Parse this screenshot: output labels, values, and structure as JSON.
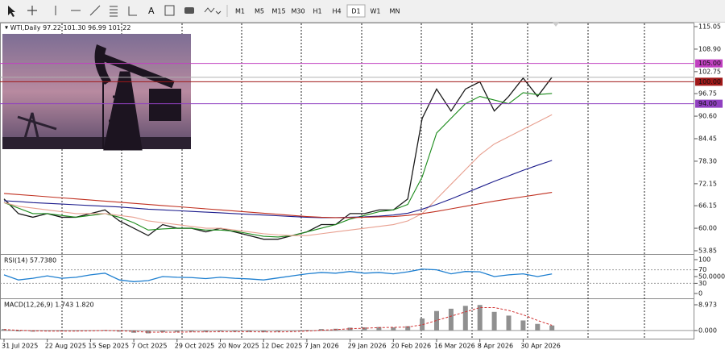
{
  "toolbar": {
    "timeframes": [
      "M1",
      "M5",
      "M15",
      "M30",
      "H1",
      "H4",
      "D1",
      "W1",
      "MN"
    ],
    "active": "D1"
  },
  "chart_data": [
    {
      "type": "line",
      "title": "WTI,Daily",
      "subtitle": "97.22 101.30 96.99 101.22",
      "categories": [
        "31 Jul 2025",
        null,
        null,
        "22 Aug 2025",
        null,
        null,
        "15 Sep 2025",
        null,
        null,
        "7 Oct 2025",
        null,
        null,
        "29 Oct 2025",
        null,
        null,
        "20 Nov 2025",
        null,
        null,
        "12 Dec 2025",
        null,
        null,
        "7 Jan 2026",
        null,
        null,
        "29 Jan 2026",
        null,
        null,
        "20 Feb 2026",
        null,
        null,
        "16 Mar 2026",
        null,
        null,
        "8 Apr 2026",
        null,
        null,
        "30 Apr 2026",
        null,
        null
      ],
      "series": [
        {
          "color": "#1a1a1a",
          "values": [
            68,
            64,
            63,
            64,
            63,
            63,
            64,
            65,
            62,
            60,
            58,
            61,
            60,
            60,
            59,
            60,
            59,
            58,
            57,
            57,
            58,
            59,
            61,
            61,
            64,
            64,
            65,
            65,
            68,
            90,
            98,
            92,
            98,
            100,
            92,
            96,
            101,
            96,
            101.22
          ]
        },
        {
          "color": "#1a8a1a",
          "values": [
            67,
            65.5,
            64,
            64,
            63.5,
            63,
            63.5,
            64,
            63,
            61.5,
            59.5,
            59.8,
            60,
            60,
            59.5,
            59.5,
            59.2,
            58.5,
            57.8,
            57.6,
            58,
            59,
            60,
            61,
            62.5,
            63.5,
            64.5,
            65,
            66.5,
            74,
            86,
            90,
            94,
            96,
            95,
            94,
            97,
            96.5,
            96.8
          ]
        },
        {
          "color": "#e8a090",
          "values": [
            67,
            66,
            65.5,
            65,
            64.5,
            64,
            64,
            64,
            63.5,
            63,
            62,
            61.5,
            61,
            60.5,
            60,
            60,
            59.5,
            59,
            58.5,
            58.2,
            58,
            58,
            58.5,
            59,
            59.5,
            60,
            60.5,
            61,
            62,
            64,
            68,
            72,
            76,
            80,
            83,
            85,
            87,
            89,
            91
          ]
        },
        {
          "color": "#1c1c8c",
          "values": [
            67.5,
            67.3,
            67,
            66.8,
            66.6,
            66.4,
            66.2,
            66,
            65.8,
            65.5,
            65.2,
            65,
            64.8,
            64.6,
            64.4,
            64.2,
            64,
            63.8,
            63.6,
            63.4,
            63.2,
            63,
            62.9,
            62.9,
            63,
            63.1,
            63.3,
            63.6,
            64.1,
            65.2,
            66.5,
            68,
            69.6,
            71.2,
            72.8,
            74.3,
            75.8,
            77.2,
            78.5
          ]
        },
        {
          "color": "#c03020",
          "values": [
            69.5,
            69.2,
            68.9,
            68.6,
            68.3,
            68,
            67.7,
            67.4,
            67.1,
            66.8,
            66.5,
            66.2,
            65.9,
            65.6,
            65.3,
            65,
            64.7,
            64.4,
            64.1,
            63.8,
            63.5,
            63.2,
            63,
            62.9,
            62.9,
            63,
            63.1,
            63.2,
            63.5,
            64,
            64.6,
            65.3,
            66,
            66.7,
            67.4,
            68,
            68.6,
            69.2,
            69.8
          ]
        }
      ],
      "ylim": [
        53.85,
        115.05
      ],
      "yticks": [
        115.05,
        {
          "value": 108.9,
          "label": "108.90"
        },
        102.75,
        96.75,
        {
          "value": 90.6,
          "label": "90.60"
        },
        84.45,
        {
          "value": 78.3,
          "label": "78.30"
        },
        72.15,
        66.15,
        {
          "value": 60,
          "label": "60.00"
        },
        53.85
      ],
      "hlines": [
        {
          "value": 105,
          "label": "105.00",
          "color": "#c040c0"
        },
        {
          "value": 100,
          "label": "100.00",
          "color": "#a01818"
        },
        {
          "value": 94,
          "label": "94.00",
          "color": "#9040c0"
        }
      ]
    },
    {
      "type": "line",
      "title": "RSI(14) 57.7380",
      "series": [
        {
          "color": "#1e7fd0",
          "values": [
            55,
            40,
            45,
            52,
            45,
            48,
            55,
            60,
            40,
            35,
            38,
            50,
            48,
            47,
            44,
            48,
            45,
            43,
            40,
            46,
            52,
            58,
            62,
            60,
            65,
            60,
            62,
            58,
            64,
            72,
            70,
            58,
            65,
            64,
            50,
            55,
            58,
            50,
            57.738
          ]
        }
      ],
      "ylim": [
        0,
        100
      ],
      "yticks": [
        100,
        70,
        {
          "value": 50,
          "label": "50.0000"
        },
        30,
        0
      ]
    },
    {
      "type": "bar",
      "title": "MACD(12,26,9) 1.743 1.820",
      "values": [
        0.5,
        -0.3,
        -0.4,
        -0.2,
        -0.3,
        -0.2,
        0,
        0.2,
        -0.4,
        -0.8,
        -1,
        -0.6,
        -0.5,
        -0.4,
        -0.5,
        -0.3,
        -0.4,
        -0.5,
        -0.6,
        -0.4,
        -0.2,
        0.2,
        0.5,
        0.6,
        1,
        1.1,
        1.2,
        1.1,
        1.5,
        4.2,
        6.8,
        7.6,
        8.6,
        8.9,
        6.5,
        5.2,
        3.5,
        2.3,
        1.743
      ],
      "signal": [
        0.3,
        0.1,
        -0.1,
        -0.2,
        -0.2,
        -0.2,
        -0.1,
        0,
        -0.1,
        -0.3,
        -0.6,
        -0.6,
        -0.6,
        -0.5,
        -0.5,
        -0.4,
        -0.4,
        -0.4,
        -0.5,
        -0.5,
        -0.4,
        -0.2,
        0.1,
        0.3,
        0.6,
        0.8,
        1,
        1.1,
        1.2,
        2,
        3.5,
        5,
        6.5,
        8,
        8,
        7,
        5.5,
        3.5,
        1.82
      ],
      "color": "#909090",
      "signal_color": "#d03030",
      "ylim": [
        -2,
        8.973
      ],
      "yticks": [
        8.973,
        {
          "value": 0,
          "label": "0.000"
        }
      ]
    }
  ]
}
